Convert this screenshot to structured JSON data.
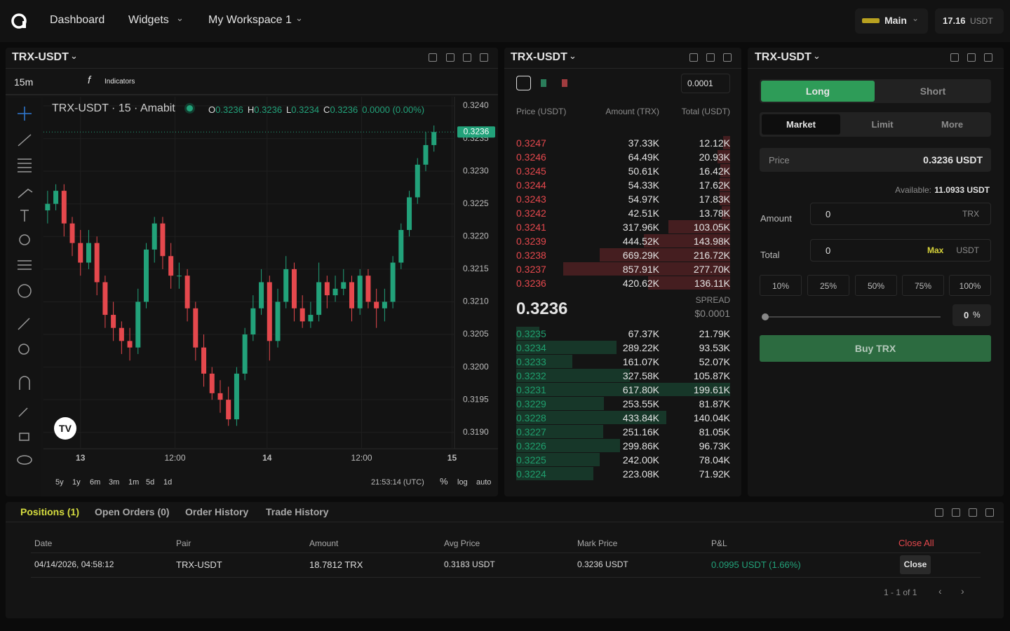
{
  "nav": {
    "items": [
      "Dashboard",
      "Widgets",
      "My Workspace 1"
    ],
    "account": "Main",
    "balance": "17.16",
    "balance_unit": "USDT"
  },
  "chart_panel": {
    "pair": "TRX-USDT",
    "interval": "15m",
    "indicators": "Indicators",
    "legend": "TRX-USDT · 15 · Amabit",
    "ohlc": [
      {
        "key": "O",
        "value": "0.3236"
      },
      {
        "key": "H",
        "value": "0.3236"
      },
      {
        "key": "L",
        "value": "0.3234"
      },
      {
        "key": "C",
        "value": "0.3236"
      }
    ],
    "change": "0.0000 (0.00%)",
    "last_price": "0.3236",
    "ranges": [
      "5y",
      "1y",
      "6m",
      "3m",
      "1m",
      "5d",
      "1d"
    ],
    "clock": "21:53:14 (UTC)",
    "scale_options": [
      "%",
      "log",
      "auto"
    ]
  },
  "chart_data": {
    "type": "candlestick",
    "open": [
      0.3224,
      0.3225,
      0.3227,
      0.3222,
      0.3219,
      0.3216,
      0.3219,
      0.3213,
      0.3208,
      0.3206,
      0.3204,
      0.3203,
      0.321,
      0.3218,
      0.3222,
      0.3217,
      0.3214,
      0.3214,
      0.3209,
      0.3203,
      0.3199,
      0.3196,
      0.3195,
      0.3192,
      0.3199,
      0.3205,
      0.3209,
      0.3213,
      0.3204,
      0.321,
      0.3215,
      0.3209,
      0.3207,
      0.3208,
      0.3213,
      0.3211,
      0.3212,
      0.3213,
      0.3209,
      0.3214,
      0.321,
      0.3209,
      0.321,
      0.3216,
      0.3221,
      0.3226,
      0.3231,
      0.3234
    ],
    "high": [
      0.3227,
      0.3228,
      0.3228,
      0.3223,
      0.3221,
      0.3221,
      0.322,
      0.3214,
      0.321,
      0.3207,
      0.3206,
      0.3212,
      0.3219,
      0.3223,
      0.3223,
      0.3219,
      0.3216,
      0.3215,
      0.321,
      0.3205,
      0.32,
      0.3198,
      0.3197,
      0.32,
      0.3206,
      0.3211,
      0.3215,
      0.3214,
      0.3212,
      0.3217,
      0.3216,
      0.3211,
      0.321,
      0.3216,
      0.3214,
      0.3214,
      0.3215,
      0.3214,
      0.3215,
      0.3215,
      0.3212,
      0.3212,
      0.3217,
      0.3222,
      0.3227,
      0.3232,
      0.3236,
      0.3237
    ],
    "low": [
      0.3222,
      0.3224,
      0.322,
      0.3217,
      0.3214,
      0.3215,
      0.3211,
      0.3206,
      0.3204,
      0.3202,
      0.3201,
      0.3202,
      0.3209,
      0.3216,
      0.3215,
      0.3212,
      0.3212,
      0.3207,
      0.3201,
      0.3197,
      0.3195,
      0.3193,
      0.3191,
      0.3191,
      0.3198,
      0.3204,
      0.3208,
      0.3201,
      0.3203,
      0.3209,
      0.3207,
      0.3206,
      0.3206,
      0.3207,
      0.3209,
      0.321,
      0.3211,
      0.3207,
      0.3208,
      0.3209,
      0.3206,
      0.3207,
      0.3209,
      0.3215,
      0.322,
      0.3225,
      0.323,
      0.3233
    ],
    "close": [
      0.3225,
      0.3227,
      0.3222,
      0.3219,
      0.3216,
      0.3219,
      0.3213,
      0.3208,
      0.3206,
      0.3204,
      0.3203,
      0.321,
      0.3218,
      0.3222,
      0.3217,
      0.3214,
      0.3214,
      0.3209,
      0.3203,
      0.3199,
      0.3196,
      0.3195,
      0.3192,
      0.3199,
      0.3205,
      0.3209,
      0.3213,
      0.3204,
      0.321,
      0.3215,
      0.3209,
      0.3207,
      0.3208,
      0.3213,
      0.3211,
      0.3212,
      0.3213,
      0.3209,
      0.3214,
      0.321,
      0.3209,
      0.321,
      0.3216,
      0.3221,
      0.3226,
      0.3231,
      0.3234,
      0.3236
    ],
    "xlim": [
      -0.5,
      49.5
    ],
    "xticks": [
      {
        "value": 4,
        "label": "13"
      },
      {
        "value": 15.5,
        "label": "12:00"
      },
      {
        "value": 26.7,
        "label": "14"
      },
      {
        "value": 38.2,
        "label": "12:00"
      },
      {
        "value": 49.2,
        "label": "15"
      }
    ],
    "ylim": [
      0.31875,
      0.32414
    ],
    "yticks": [
      {
        "value": 0.319,
        "label": "0.3190"
      },
      {
        "value": 0.3195,
        "label": "0.3195"
      },
      {
        "value": 0.32,
        "label": "0.3200"
      },
      {
        "value": 0.3205,
        "label": "0.3205"
      },
      {
        "value": 0.321,
        "label": "0.3210"
      },
      {
        "value": 0.3215,
        "label": "0.3215"
      },
      {
        "value": 0.322,
        "label": "0.3220"
      },
      {
        "value": 0.3225,
        "label": "0.3225"
      },
      {
        "value": 0.323,
        "label": "0.3230"
      },
      {
        "value": 0.3235,
        "label": "0.3235"
      },
      {
        "value": 0.324,
        "label": "0.3240"
      }
    ],
    "up_color": "#22a27a",
    "down_color": "#e5484d",
    "grid": true
  },
  "order_book": {
    "pair": "TRX-USDT",
    "precision": "0.0001",
    "headers": [
      "Price (USDT)",
      "Amount (TRX)",
      "Total (USDT)"
    ],
    "asks": [
      [
        "0.3247",
        "37.33K",
        "12.12K"
      ],
      [
        "0.3246",
        "64.49K",
        "20.93K"
      ],
      [
        "0.3245",
        "50.61K",
        "16.42K"
      ],
      [
        "0.3244",
        "54.33K",
        "17.62K"
      ],
      [
        "0.3243",
        "54.97K",
        "17.83K"
      ],
      [
        "0.3242",
        "42.51K",
        "13.78K"
      ],
      [
        "0.3241",
        "317.96K",
        "103.05K"
      ],
      [
        "0.3239",
        "444.52K",
        "143.98K"
      ],
      [
        "0.3238",
        "669.29K",
        "216.72K"
      ],
      [
        "0.3237",
        "857.91K",
        "277.70K"
      ],
      [
        "0.3236",
        "420.62K",
        "136.11K"
      ]
    ],
    "mid_price": "0.3236",
    "spread_label": "SPREAD",
    "spread": "$0.0001",
    "bids": [
      [
        "0.3235",
        "67.37K",
        "21.79K"
      ],
      [
        "0.3234",
        "289.22K",
        "93.53K"
      ],
      [
        "0.3233",
        "161.07K",
        "52.07K"
      ],
      [
        "0.3232",
        "327.58K",
        "105.87K"
      ],
      [
        "0.3231",
        "617.80K",
        "199.61K"
      ],
      [
        "0.3229",
        "253.55K",
        "81.87K"
      ],
      [
        "0.3228",
        "433.84K",
        "140.04K"
      ],
      [
        "0.3227",
        "251.16K",
        "81.05K"
      ],
      [
        "0.3226",
        "299.86K",
        "96.73K"
      ],
      [
        "0.3225",
        "242.00K",
        "78.04K"
      ],
      [
        "0.3224",
        "223.08K",
        "71.92K"
      ]
    ]
  },
  "trade": {
    "pair": "TRX-USDT",
    "sides": [
      "Long",
      "Short"
    ],
    "order_types": [
      "Market",
      "Limit",
      "More"
    ],
    "price_label": "Price",
    "price": "0.3236 USDT",
    "available_label": "Available:",
    "available": "11.0933 USDT",
    "amount_label": "Amount",
    "amount": "0",
    "amount_unit": "TRX",
    "total_label": "Total",
    "total": "0",
    "max": "Max",
    "total_unit": "USDT",
    "percents": [
      "10%",
      "25%",
      "50%",
      "75%",
      "100%"
    ],
    "slider_value": "0",
    "slider_unit": "%",
    "submit": "Buy TRX"
  },
  "positions": {
    "tabs": [
      "Positions (1)",
      "Open Orders (0)",
      "Order History",
      "Trade History"
    ],
    "headers": [
      "Date",
      "Pair",
      "Amount",
      "Avg Price",
      "Mark Price",
      "P&L"
    ],
    "close_all": "Close All",
    "rows": [
      [
        "04/14/2026, 04:58:12",
        "TRX-USDT",
        "18.7812 TRX",
        "0.3183 USDT",
        "0.3236 USDT",
        "0.0995 USDT (1.66%)"
      ]
    ],
    "close": "Close",
    "pagination": "1 - 1 of 1"
  }
}
